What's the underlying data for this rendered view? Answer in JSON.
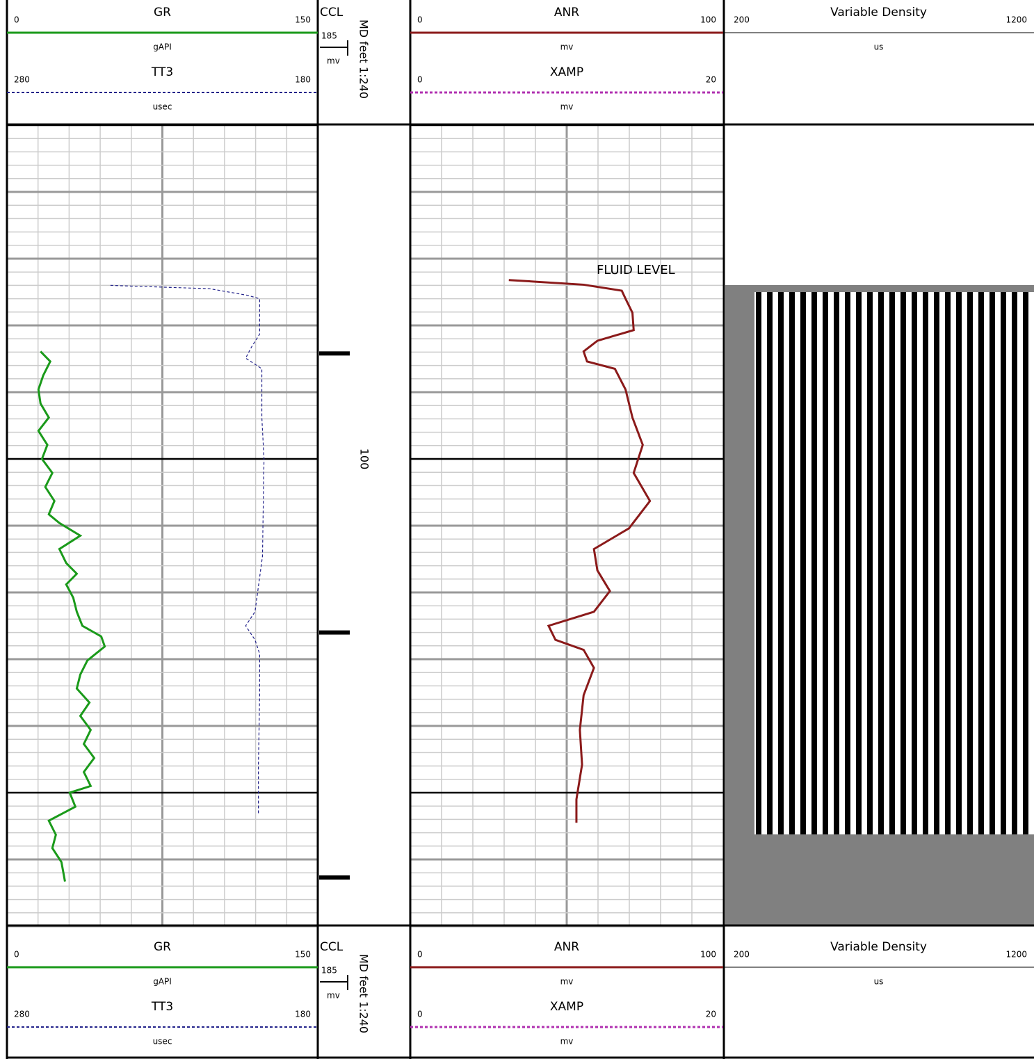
{
  "log": {
    "depth": {
      "title": "MD feet 1:240",
      "ylim": [
        50,
        170
      ],
      "labels": [
        100
      ]
    },
    "grid": {
      "minor_step": 2,
      "major_step": 10,
      "dark_step": 50,
      "vertical_divisions": 10
    },
    "annotation": "FLUID LEVEL",
    "tracks": [
      {
        "curves": [
          {
            "name": "GR",
            "unit": "gAPI",
            "scale": [
              0,
              150
            ],
            "color": "#1a9a1a",
            "style": "solid",
            "depth": [
              83.9,
              85.4,
              87.5,
              89.6,
              91.7,
              93.8,
              95.8,
              97.9,
              100.0,
              102.1,
              104.2,
              106.3,
              108.3,
              109.6,
              111.5,
              113.5,
              115.6,
              117.2,
              118.8,
              120.8,
              122.9,
              125.0,
              126.6,
              128.1,
              130.2,
              132.3,
              134.4,
              136.5,
              138.5,
              140.6,
              142.7,
              144.8,
              146.9,
              149.0,
              150.0,
              152.1,
              154.2,
              156.3,
              158.3,
              160.4,
              163.3
            ],
            "values": [
              16.2,
              20.9,
              17.5,
              15.2,
              16.2,
              20.2,
              15.2,
              19.5,
              16.9,
              21.9,
              18.5,
              22.9,
              20.2,
              25.3,
              35.4,
              25.3,
              28.6,
              33.7,
              28.6,
              32.0,
              33.7,
              36.4,
              45.5,
              47.2,
              38.8,
              35.4,
              33.7,
              39.8,
              35.4,
              40.4,
              37.1,
              42.1,
              37.1,
              40.4,
              30.3,
              33.0,
              20.2,
              23.6,
              21.9,
              26.3,
              28.0
            ]
          },
          {
            "name": "TT3",
            "unit": "usec",
            "scale": [
              280,
              180
            ],
            "color": "#22228a",
            "style": "dashed",
            "depth": [
              74.0,
              74.5,
              75.5,
              76.0,
              81.3,
              83.3,
              84.9,
              86.5,
              93.8,
              100.0,
              114.6,
              122.9,
              125.0,
              127.1,
              129.2,
              135.4,
              145.8,
              153.1
            ],
            "values": [
              246.7,
              214.8,
              202.5,
              198.7,
              198.7,
              201.4,
              203.2,
              198.0,
              198.0,
              197.3,
              197.8,
              200.2,
              203.2,
              200.2,
              198.7,
              198.7,
              199.1,
              199.1
            ]
          }
        ]
      },
      {
        "name": "CCL",
        "value": 185,
        "unit": "mv",
        "marks": [
          84.2,
          126.0,
          162.7
        ]
      },
      {
        "curves": [
          {
            "name": "ANR",
            "unit": "mv",
            "scale": [
              0,
              100
            ],
            "color": "#8b1a1a",
            "style": "solid",
            "depth": [
              73.2,
              73.9,
              74.8,
              76.0,
              78.1,
              80.7,
              82.3,
              83.9,
              85.4,
              86.5,
              89.6,
              93.8,
              97.9,
              102.1,
              106.3,
              110.4,
              113.5,
              116.7,
              119.8,
              122.9,
              125.0,
              127.1,
              128.6,
              131.3,
              135.4,
              140.6,
              145.8,
              151.0,
              154.5
            ],
            "values": [
              31.5,
              55.4,
              67.6,
              68.8,
              71.0,
              71.4,
              59.8,
              55.4,
              56.5,
              65.4,
              68.8,
              71.0,
              74.3,
              71.4,
              76.6,
              69.9,
              58.7,
              59.8,
              63.8,
              58.7,
              44.2,
              46.4,
              55.4,
              58.7,
              55.4,
              54.2,
              54.9,
              53.1,
              53.1
            ]
          },
          {
            "name": "XAMP",
            "unit": "mv",
            "scale": [
              0,
              20
            ],
            "color": "#b030b0",
            "style": "dashed",
            "depth": [],
            "values": []
          }
        ]
      },
      {
        "name": "Variable Density",
        "unit": "us",
        "scale": [
          200,
          1200
        ]
      }
    ]
  }
}
